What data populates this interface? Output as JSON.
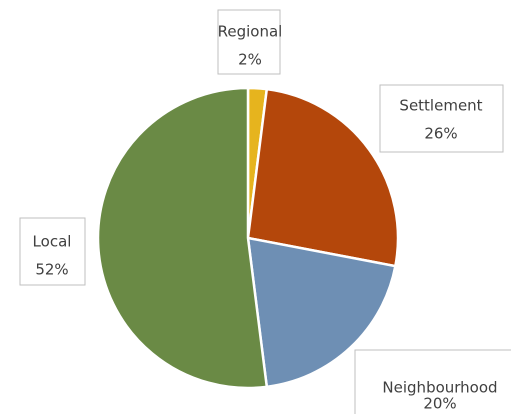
{
  "chart_data": {
    "type": "pie",
    "categories": [
      "Regional",
      "Settlement",
      "Neighbourhood",
      "Local"
    ],
    "values": [
      2,
      26,
      20,
      52
    ],
    "value_labels": [
      "2%",
      "26%",
      "20%",
      "52%"
    ],
    "colors": [
      "#e6b41e",
      "#b4470b",
      "#6e8fb4",
      "#6a8a45"
    ]
  }
}
